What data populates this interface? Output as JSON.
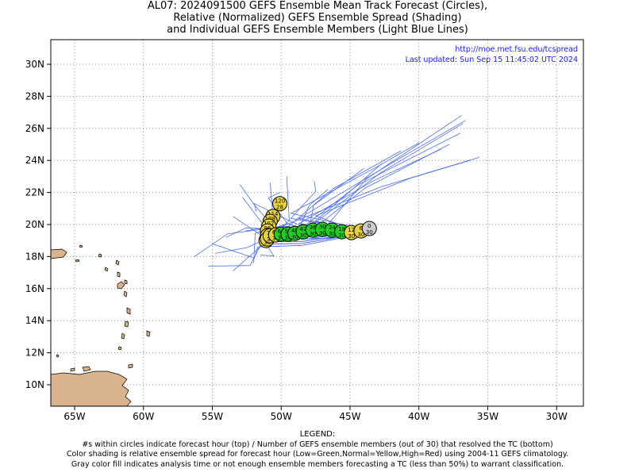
{
  "title": {
    "line1": "AL07: 2024091500 GEFS Ensemble Mean Track Forecast (Circles),",
    "line2": "Relative (Normalized) GEFS Ensemble Spread (Shading)",
    "line3": "and Individual GEFS Ensemble Members (Light Blue Lines)"
  },
  "info": {
    "url": "http://moe.met.fsu.edu/tcspread",
    "updated": "Last updated: Sun Sep 15 11:45:02 UTC 2024"
  },
  "legend": {
    "heading": "LEGEND:",
    "line1": "#s within circles indicate forecast hour (top) / Number of GEFS ensemble members (out of 30) that resolved the TC (bottom)",
    "line2": "Color shading is relative ensemble spread for forecast hour (Low=Green,Normal=Yellow,High=Red) using 2004-11 GEFS climatology.",
    "line3": "Gray color fill indicates analysis time or not enough ensemble members forecasting a TC (less than 50%) to warrant classification."
  },
  "colors": {
    "analysis_gray": "#cccccc",
    "low_green": "#22cc22",
    "normal_yellow": "#e8d43a",
    "member_blue": "#4a6cf0",
    "land": "#d9b38c",
    "info_blue": "#1a1aff"
  },
  "axes": {
    "lon_labels": [
      "65W",
      "60W",
      "55W",
      "50W",
      "45W",
      "40W",
      "35W",
      "30W"
    ],
    "lat_labels": [
      "30N",
      "28N",
      "26N",
      "24N",
      "22N",
      "20N",
      "18N",
      "16N",
      "14N",
      "12N",
      "10N"
    ]
  },
  "track": [
    {
      "hour": "0",
      "members": "30",
      "lon": -43.6,
      "lat": 19.75,
      "color": "gray"
    },
    {
      "hour": "6",
      "members": "30",
      "lon": -44.2,
      "lat": 19.6,
      "color": "yellow"
    },
    {
      "hour": "12",
      "members": "30",
      "lon": -44.9,
      "lat": 19.5,
      "color": "yellow"
    },
    {
      "hour": "18",
      "members": "30",
      "lon": -45.6,
      "lat": 19.55,
      "color": "green"
    },
    {
      "hour": "24",
      "members": "30",
      "lon": -46.3,
      "lat": 19.65,
      "color": "green"
    },
    {
      "hour": "30",
      "members": "30",
      "lon": -47.0,
      "lat": 19.7,
      "color": "green"
    },
    {
      "hour": "36",
      "members": "30",
      "lon": -47.7,
      "lat": 19.65,
      "color": "green"
    },
    {
      "hour": "42",
      "members": "30",
      "lon": -48.4,
      "lat": 19.55,
      "color": "green"
    },
    {
      "hour": "48",
      "members": "30",
      "lon": -49.0,
      "lat": 19.45,
      "color": "green"
    },
    {
      "hour": "54",
      "members": "30",
      "lon": -49.5,
      "lat": 19.4,
      "color": "green"
    },
    {
      "hour": "60",
      "members": "30",
      "lon": -50.0,
      "lat": 19.4,
      "color": "green"
    },
    {
      "hour": "66",
      "members": "30",
      "lon": -50.4,
      "lat": 19.35,
      "color": "yellow"
    },
    {
      "hour": "72",
      "members": "30",
      "lon": -50.8,
      "lat": 19.3,
      "color": "yellow"
    },
    {
      "hour": "78",
      "members": "30",
      "lon": -51.0,
      "lat": 19.1,
      "color": "yellow"
    },
    {
      "hour": "84",
      "members": "30",
      "lon": -51.1,
      "lat": 19.0,
      "color": "yellow"
    },
    {
      "hour": "90",
      "members": "30",
      "lon": -51.0,
      "lat": 19.3,
      "color": "yellow"
    },
    {
      "hour": "96",
      "members": "30",
      "lon": -51.0,
      "lat": 19.6,
      "color": "yellow"
    },
    {
      "hour": "102",
      "members": "30",
      "lon": -50.9,
      "lat": 19.9,
      "color": "yellow"
    },
    {
      "hour": "108",
      "members": "30",
      "lon": -50.8,
      "lat": 20.2,
      "color": "yellow"
    },
    {
      "hour": "114",
      "members": "29",
      "lon": -50.6,
      "lat": 20.5,
      "color": "yellow"
    },
    {
      "hour": "120",
      "members": "28",
      "lon": -50.1,
      "lat": 21.3,
      "color": "yellow"
    }
  ]
}
